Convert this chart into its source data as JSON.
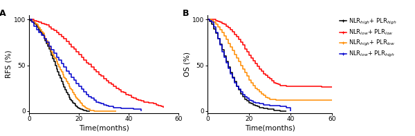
{
  "panel_A_label": "A",
  "panel_B_label": "B",
  "xlabel": "Time(months)",
  "ylabel_A": "RFS (%)",
  "ylabel_B": "OS (%)",
  "xlim": [
    0,
    60
  ],
  "ylim": [
    -2,
    105
  ],
  "xticks": [
    0,
    20,
    40,
    60
  ],
  "yticks": [
    0,
    50,
    100
  ],
  "colors": [
    "#000000",
    "#ff0000",
    "#ff8c00",
    "#0000cd"
  ],
  "rfs": {
    "black": {
      "x": [
        0,
        0.5,
        1,
        1.5,
        2,
        2.5,
        3,
        3.5,
        4,
        4.5,
        5,
        5.5,
        6,
        6.5,
        7,
        7.5,
        8,
        8.5,
        9,
        9.5,
        10,
        10.5,
        11,
        11.5,
        12,
        12.5,
        13,
        13.5,
        14,
        14.5,
        15,
        15.5,
        16,
        16.5,
        17,
        17.5,
        18,
        18.5,
        19,
        19.5,
        20,
        20.5,
        21,
        21.5,
        22,
        22.5,
        23,
        23.5,
        24,
        24.5
      ],
      "y": [
        100,
        99,
        98,
        97,
        96,
        95,
        93,
        91,
        89,
        87,
        85,
        83,
        80,
        77,
        74,
        71,
        68,
        65,
        61,
        57,
        54,
        50,
        46,
        43,
        39,
        36,
        32,
        29,
        26,
        23,
        20,
        18,
        15,
        13,
        11,
        9,
        8,
        6,
        5,
        4,
        3,
        2.5,
        2,
        1.5,
        1,
        0.5,
        0,
        0,
        0,
        0
      ]
    },
    "red": {
      "x": [
        0,
        1,
        2,
        3,
        4,
        5,
        6,
        7,
        8,
        9,
        10,
        11,
        12,
        13,
        14,
        15,
        16,
        17,
        18,
        19,
        20,
        21,
        22,
        23,
        24,
        25,
        26,
        27,
        28,
        29,
        30,
        31,
        32,
        33,
        34,
        35,
        36,
        37,
        38,
        39,
        40,
        41,
        42,
        43,
        44,
        45,
        46,
        47,
        48,
        49,
        50,
        51,
        52,
        53,
        54
      ],
      "y": [
        100,
        100,
        99,
        98,
        97,
        96,
        95,
        94,
        92,
        90,
        88,
        86,
        84,
        81,
        79,
        76,
        73,
        70,
        68,
        65,
        62,
        59,
        56,
        53,
        51,
        48,
        45,
        43,
        40,
        38,
        35,
        33,
        31,
        29,
        27,
        25,
        23,
        21,
        20,
        18,
        17,
        15,
        14,
        13,
        12,
        11,
        10,
        10,
        9,
        9,
        8,
        7,
        6,
        5,
        4
      ]
    },
    "orange": {
      "x": [
        0,
        0.5,
        1,
        1.5,
        2,
        2.5,
        3,
        3.5,
        4,
        4.5,
        5,
        5.5,
        6,
        6.5,
        7,
        7.5,
        8,
        8.5,
        9,
        9.5,
        10,
        10.5,
        11,
        11.5,
        12,
        12.5,
        13,
        13.5,
        14,
        14.5,
        15,
        15.5,
        16,
        16.5,
        17,
        17.5,
        18,
        18.5,
        19,
        19.5,
        20,
        20.5,
        21,
        21.5,
        22,
        22.5,
        23,
        23.5,
        24,
        24.5,
        25,
        25.5,
        26,
        26.5,
        27,
        27.5,
        28,
        28.5,
        29,
        29.5,
        30,
        30.5,
        31,
        31.5,
        32,
        32.5,
        33,
        33.5,
        34,
        34.5,
        35
      ],
      "y": [
        100,
        100,
        99,
        98,
        97,
        96,
        95,
        93,
        91,
        89,
        87,
        85,
        82,
        79,
        77,
        74,
        71,
        68,
        65,
        62,
        59,
        57,
        54,
        51,
        48,
        45,
        43,
        40,
        37,
        35,
        32,
        30,
        27,
        25,
        23,
        20,
        18,
        16,
        14,
        13,
        11,
        9,
        8,
        6,
        5,
        4,
        3,
        2,
        2,
        1,
        1,
        0.5,
        0,
        0,
        0,
        0,
        0,
        0,
        0,
        0,
        0,
        0,
        0,
        0,
        0,
        0,
        0,
        0,
        0,
        0,
        0
      ]
    },
    "blue": {
      "x": [
        0,
        1,
        2,
        3,
        4,
        5,
        6,
        7,
        8,
        9,
        10,
        11,
        12,
        13,
        14,
        15,
        16,
        17,
        18,
        19,
        20,
        21,
        22,
        23,
        24,
        25,
        26,
        27,
        28,
        29,
        30,
        31,
        32,
        33,
        34,
        35,
        36,
        37,
        38,
        39,
        40,
        41,
        42,
        43,
        44,
        45
      ],
      "y": [
        100,
        97,
        93,
        89,
        86,
        83,
        79,
        75,
        71,
        67,
        63,
        59,
        56,
        52,
        48,
        44,
        41,
        37,
        34,
        30,
        27,
        24,
        21,
        18,
        16,
        14,
        12,
        10,
        9,
        8,
        7,
        6,
        5,
        5,
        4,
        4,
        4,
        3,
        3,
        3,
        3,
        3,
        2,
        2,
        2,
        0
      ]
    }
  },
  "os": {
    "black": {
      "x": [
        0,
        1,
        2,
        3,
        4,
        5,
        6,
        7,
        8,
        9,
        10,
        11,
        12,
        13,
        14,
        15,
        16,
        17,
        18,
        19,
        20,
        21,
        22,
        23,
        24,
        25,
        26,
        27,
        28,
        29,
        30,
        31,
        32,
        33,
        34,
        35,
        36,
        37,
        38
      ],
      "y": [
        100,
        98,
        95,
        90,
        85,
        79,
        73,
        67,
        60,
        54,
        48,
        42,
        37,
        32,
        27,
        23,
        19,
        16,
        13,
        11,
        9,
        8,
        7,
        6,
        5,
        4,
        4,
        3,
        3,
        2,
        2,
        2,
        1,
        1,
        1,
        0,
        0,
        0,
        0
      ]
    },
    "red": {
      "x": [
        0,
        1,
        2,
        3,
        4,
        5,
        6,
        7,
        8,
        9,
        10,
        11,
        12,
        13,
        14,
        15,
        16,
        17,
        18,
        19,
        20,
        21,
        22,
        23,
        24,
        25,
        26,
        27,
        28,
        29,
        30,
        31,
        32,
        33,
        34,
        35,
        36,
        37,
        38,
        39,
        40,
        41,
        42,
        43,
        44,
        45,
        46,
        47,
        48,
        49,
        50,
        51,
        52,
        53,
        54,
        55,
        56,
        57,
        58,
        59,
        60
      ],
      "y": [
        100,
        100,
        100,
        100,
        99,
        98,
        97,
        96,
        95,
        93,
        91,
        89,
        87,
        84,
        81,
        78,
        75,
        72,
        68,
        65,
        61,
        58,
        55,
        52,
        49,
        46,
        44,
        41,
        39,
        37,
        35,
        33,
        31,
        30,
        29,
        28,
        28,
        28,
        27,
        27,
        27,
        27,
        27,
        27,
        27,
        27,
        27,
        27,
        27,
        27,
        27,
        27,
        27,
        27,
        27,
        26,
        26,
        26,
        26,
        26,
        26
      ]
    },
    "orange": {
      "x": [
        0,
        1,
        2,
        3,
        4,
        5,
        6,
        7,
        8,
        9,
        10,
        11,
        12,
        13,
        14,
        15,
        16,
        17,
        18,
        19,
        20,
        21,
        22,
        23,
        24,
        25,
        26,
        27,
        28,
        29,
        30,
        31,
        32,
        33,
        34,
        35,
        36,
        37,
        38,
        39,
        40,
        41,
        42,
        43,
        44,
        45,
        46,
        47,
        48,
        49,
        50,
        51,
        52,
        53,
        54,
        55,
        56,
        57,
        58,
        59,
        60
      ],
      "y": [
        100,
        100,
        99,
        97,
        95,
        92,
        89,
        86,
        82,
        78,
        74,
        70,
        66,
        62,
        58,
        54,
        50,
        46,
        42,
        38,
        34,
        31,
        28,
        25,
        23,
        21,
        19,
        17,
        15,
        14,
        13,
        13,
        13,
        12,
        12,
        12,
        12,
        12,
        12,
        12,
        12,
        12,
        12,
        12,
        12,
        12,
        12,
        12,
        12,
        12,
        12,
        12,
        12,
        12,
        12,
        12,
        12,
        12,
        12,
        12,
        12
      ]
    },
    "blue": {
      "x": [
        0,
        1,
        2,
        3,
        4,
        5,
        6,
        7,
        8,
        9,
        10,
        11,
        12,
        13,
        14,
        15,
        16,
        17,
        18,
        19,
        20,
        21,
        22,
        23,
        24,
        25,
        26,
        27,
        28,
        29,
        30,
        31,
        32,
        33,
        34,
        35,
        36,
        37,
        38,
        39,
        40
      ],
      "y": [
        100,
        99,
        97,
        92,
        86,
        79,
        72,
        65,
        59,
        53,
        47,
        41,
        36,
        31,
        27,
        24,
        21,
        18,
        16,
        14,
        12,
        11,
        10,
        9,
        9,
        8,
        8,
        7,
        7,
        7,
        6,
        6,
        6,
        6,
        6,
        5,
        5,
        5,
        4,
        4,
        0
      ]
    }
  },
  "background": "#ffffff",
  "tick_fontsize": 6.5,
  "label_fontsize": 7.5,
  "legend_fontsize": 6,
  "panel_label_fontsize": 9,
  "linewidth": 1.1
}
